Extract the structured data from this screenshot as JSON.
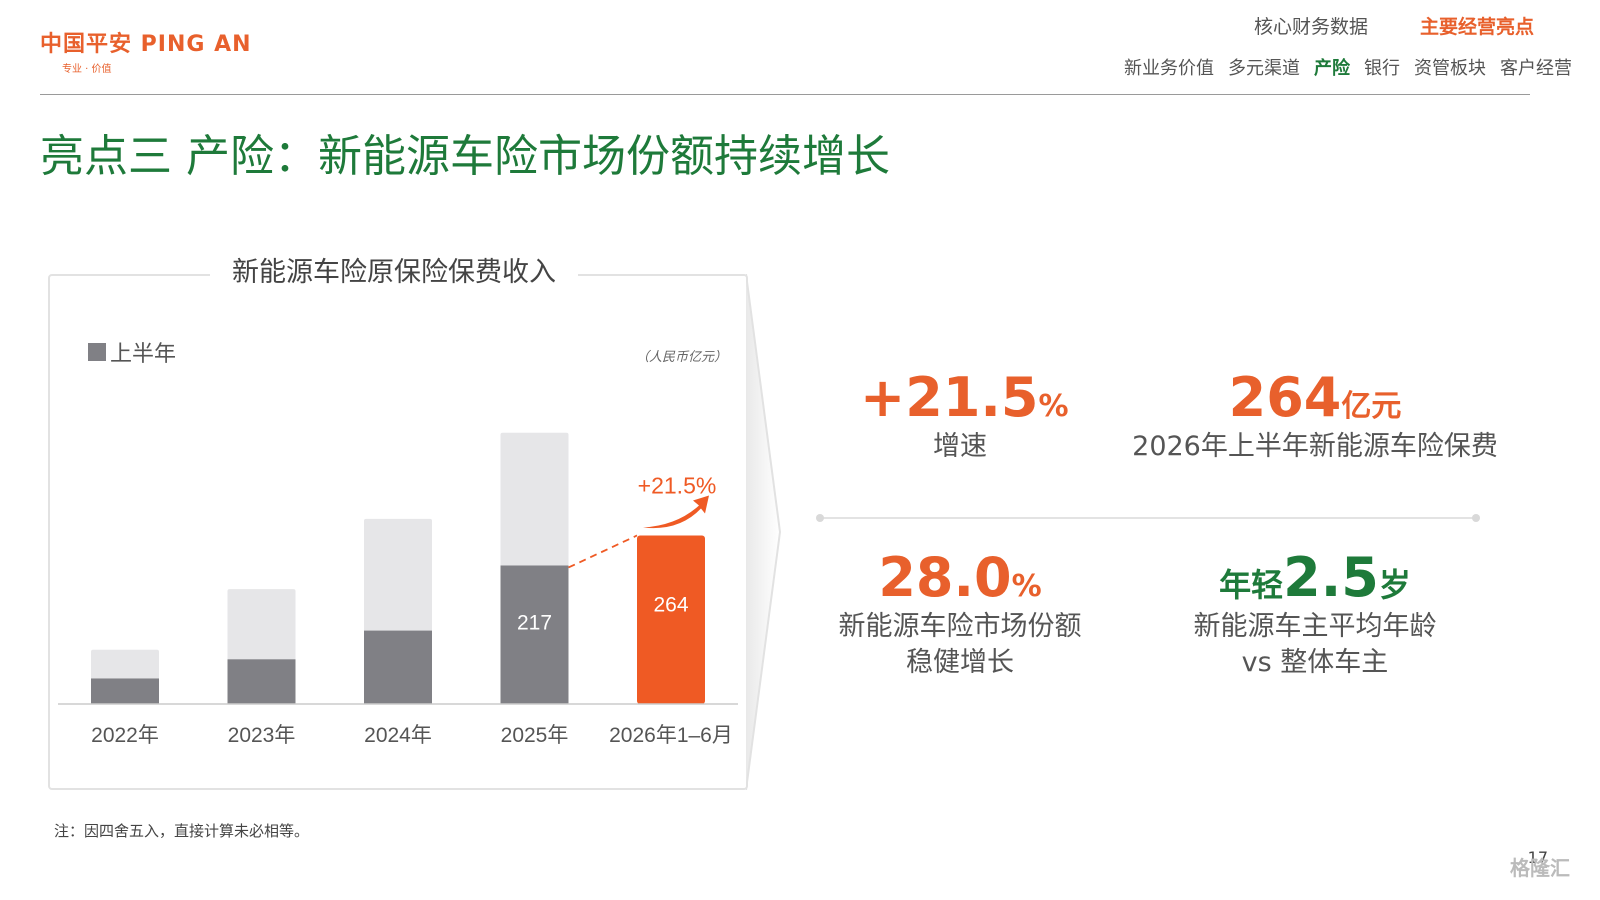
{
  "header": {
    "logo_text": "中国平安 PING AN",
    "logo_tagline": "专业 · 价值",
    "sections": [
      {
        "label": "核心财务数据",
        "active": false
      },
      {
        "label": "主要经营亮点",
        "active": true
      }
    ],
    "subnav": [
      {
        "label": "新业务价值",
        "active": false
      },
      {
        "label": "多元渠道",
        "active": false
      },
      {
        "label": "产险",
        "active": true
      },
      {
        "label": "银行",
        "active": false
      },
      {
        "label": "资管板块",
        "active": false
      },
      {
        "label": "客户经营",
        "active": false
      }
    ]
  },
  "page_title": "亮点三 产险：新能源车险市场份额持续增长",
  "chart_data": {
    "type": "bar",
    "title": "新能源车险原保险保费收入",
    "unit": "（人民币亿元）",
    "legend": [
      "上半年"
    ],
    "categories": [
      "2022年",
      "2023年",
      "2024年",
      "2025年",
      "2026年1–6月"
    ],
    "series": [
      {
        "name": "上半年",
        "values": [
          40,
          70,
          115,
          217,
          264
        ]
      },
      {
        "values": [
          85,
          180,
          290,
          425,
          null
        ]
      }
    ],
    "data_labels": [
      "",
      "",
      "",
      "217",
      "264"
    ],
    "growth_annotation": "+21.5%",
    "ylim": [
      0,
      470
    ],
    "colors": {
      "half_year": "#808085",
      "full_year": "#e6e6e8",
      "highlight": "#ef5a24"
    }
  },
  "kpis": [
    {
      "value": "+21.5",
      "suffix": "%",
      "desc": [
        "增速"
      ]
    },
    {
      "value": "264",
      "suffix": "亿元",
      "desc": [
        "2026年上半年新能源车险保费"
      ]
    },
    {
      "value": "28.0",
      "suffix": "%",
      "desc": [
        "新能源车险市场份额",
        "稳健增长"
      ]
    },
    {
      "prefix": "年轻",
      "value": "2.5",
      "suffix": "岁",
      "desc": [
        "新能源车主平均年龄",
        "vs 整体车主"
      ]
    }
  ],
  "note": "注：因四舍五入，直接计算未必相等。",
  "page_number": "17",
  "watermark": "格隆汇"
}
